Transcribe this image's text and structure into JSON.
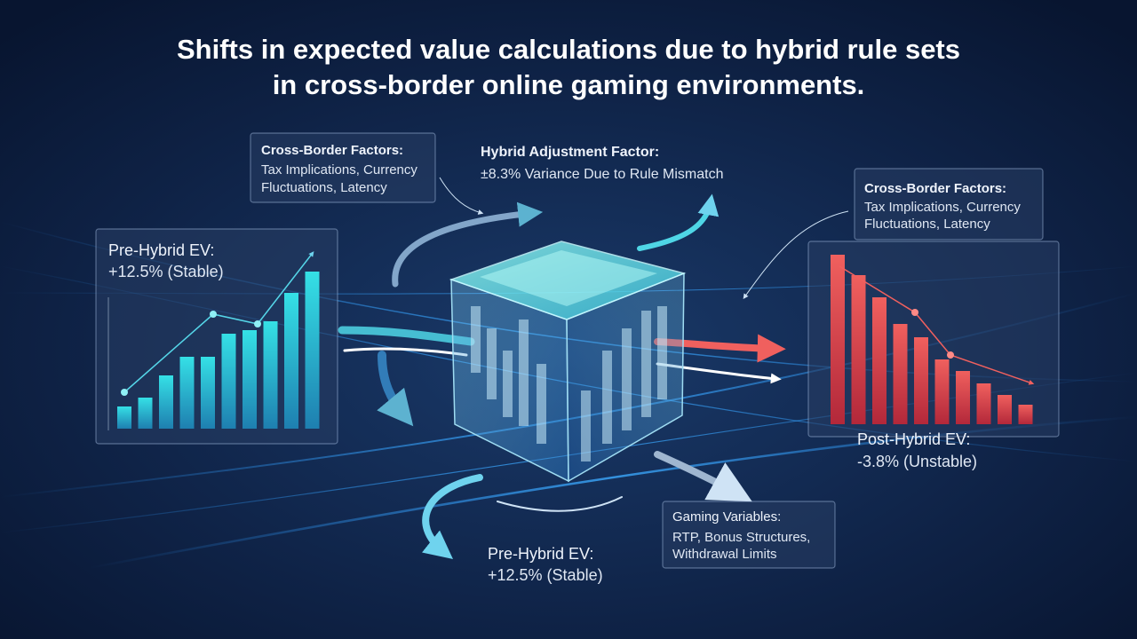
{
  "title": {
    "lines": [
      "Shifts in expected value calculations due to hybrid rule sets",
      "in cross-border online gaming environments."
    ]
  },
  "callouts": [
    {
      "heading": "Cross-Border Factors:",
      "lines": [
        "Tax Implications, Currency",
        "Fluctuations, Latency"
      ]
    },
    {
      "heading": "Hybrid Adjustment Factor:",
      "lines": [
        "±8.3% Variance Due to Rule Mismatch"
      ]
    },
    {
      "heading": "Cross-Border Factors:",
      "lines": [
        "Tax Implications, Currency",
        "Fluctuations, Latency"
      ]
    },
    {
      "heading": "Pre-Hybrid EV:",
      "lines": [
        "+12.5% (Stable)"
      ]
    },
    {
      "heading": "Post-Hybrid EV:",
      "lines": [
        "-3.8% (Unstable)"
      ]
    },
    {
      "heading": "Gaming Variables:",
      "lines": [
        "RTP, Bonus Structures,",
        "Withdrawal Limits"
      ]
    },
    {
      "heading": "Pre-Hybrid EV:",
      "lines": [
        "+12.5% (Stable)"
      ]
    }
  ]
}
